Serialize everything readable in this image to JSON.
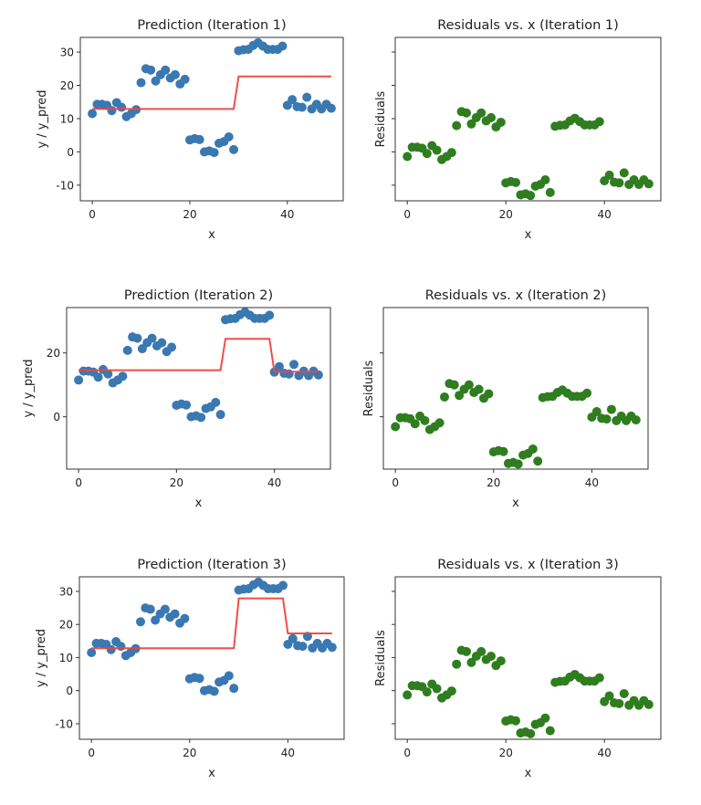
{
  "chart_data": {
    "type": "scatter",
    "x": [
      0,
      1,
      2,
      3,
      4,
      5,
      6,
      7,
      8,
      9,
      10,
      11,
      12,
      13,
      14,
      15,
      16,
      17,
      18,
      19,
      20,
      21,
      22,
      23,
      24,
      25,
      26,
      27,
      28,
      29,
      30,
      31,
      32,
      33,
      34,
      35,
      36,
      37,
      38,
      39,
      40,
      41,
      42,
      43,
      44,
      45,
      46,
      47,
      48,
      49
    ],
    "y": [
      11.5,
      14.3,
      14.3,
      14.0,
      12.4,
      14.8,
      13.4,
      10.6,
      11.5,
      12.7,
      20.8,
      25.0,
      24.6,
      21.3,
      23.2,
      24.6,
      22.2,
      23.2,
      20.4,
      21.8,
      3.6,
      4.0,
      3.7,
      0.0,
      0.3,
      -0.2,
      2.6,
      3.1,
      4.5,
      0.7,
      30.4,
      30.7,
      30.8,
      32.0,
      32.8,
      31.8,
      30.8,
      30.8,
      30.8,
      31.8,
      14.0,
      15.7,
      13.6,
      13.4,
      16.4,
      12.9,
      14.3,
      12.9,
      14.3,
      13.1
    ],
    "xlim": [
      -2.45,
      51.45
    ],
    "xticks": [
      0,
      20,
      40
    ],
    "colors": {
      "data": "#3a78b2",
      "residuals": "#2f7d1f",
      "prediction": "#f0453f"
    },
    "rows": [
      {
        "prediction": {
          "title": "Prediction (Iteration 1)",
          "xlabel": "x",
          "ylabel": "y / y_pred"
        },
        "residuals": {
          "title": "Residuals vs. x (Iteration 1)",
          "xlabel": "x",
          "ylabel": "Residuals"
        },
        "ylim": [
          -14.7,
          34.4
        ],
        "yticks": [
          -10,
          0,
          10,
          20,
          30
        ],
        "pred_segments": [
          {
            "from": 0,
            "to": 29,
            "value": 12.9
          },
          {
            "from": 30,
            "to": 49,
            "value": 22.7
          }
        ]
      },
      {
        "prediction": {
          "title": "Prediction (Iteration 2)",
          "xlabel": "x",
          "ylabel": "y / y_pred"
        },
        "residuals": {
          "title": "Residuals vs. x (Iteration 2)",
          "xlabel": "x",
          "ylabel": "Residuals"
        },
        "ylim": [
          -16.4,
          34.2
        ],
        "yticks": [
          0,
          20
        ],
        "pred_segments": [
          {
            "from": 0,
            "to": 29,
            "value": 14.6
          },
          {
            "from": 30,
            "to": 39,
            "value": 24.4
          },
          {
            "from": 40,
            "to": 49,
            "value": 14.1
          }
        ]
      },
      {
        "prediction": {
          "title": "Prediction (Iteration 3)",
          "xlabel": "x",
          "ylabel": "y / y_pred"
        },
        "residuals": {
          "title": "Residuals vs. x (Iteration 3)",
          "xlabel": "x",
          "ylabel": "Residuals"
        },
        "ylim": [
          -14.7,
          34.4
        ],
        "yticks": [
          -10,
          0,
          10,
          20,
          30
        ],
        "pred_segments": [
          {
            "from": 0,
            "to": 29,
            "value": 12.8
          },
          {
            "from": 30,
            "to": 39,
            "value": 27.9
          },
          {
            "from": 40,
            "to": 49,
            "value": 17.3
          }
        ]
      }
    ]
  }
}
